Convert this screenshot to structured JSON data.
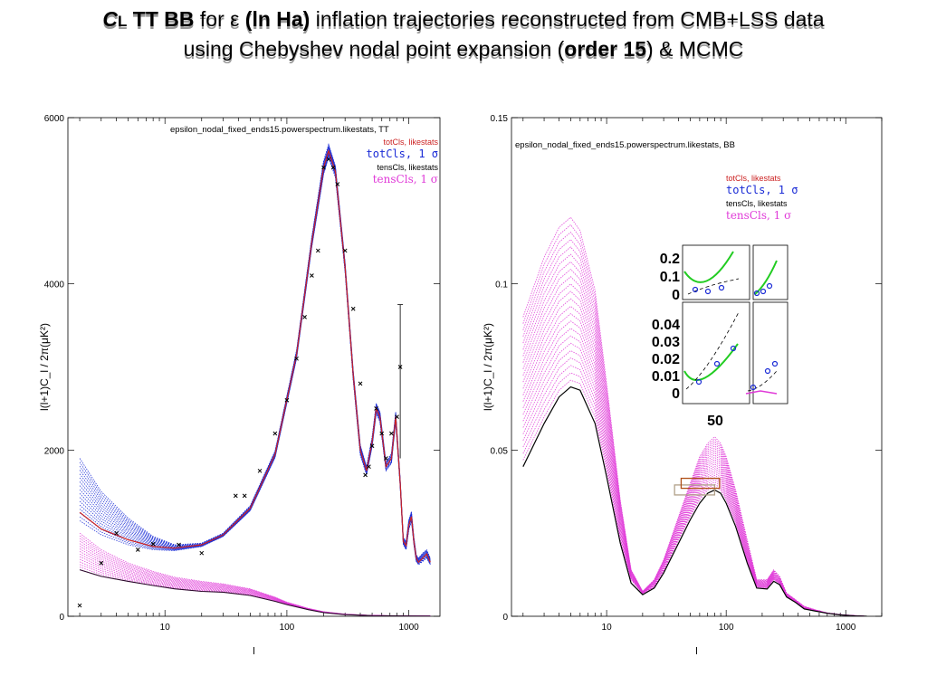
{
  "title": {
    "line1": {
      "cl_letter": "C",
      "cl_sub": "L",
      "tt_bb": " TT BB",
      "for": " for ",
      "epsilon": "ε",
      "lnha": " (ln Ha)",
      "rest": " inflation trajectories reconstructed from CMB+LSS data"
    },
    "line2": {
      "pre": "using Chebyshev nodal point expansion (",
      "order": "order 15",
      "post": ") & MCMC"
    }
  },
  "colors": {
    "totcls_likestats": "#cc2222",
    "totcls_1sigma": "#1a2bd6",
    "tenscls_likestats": "#000000",
    "tenscls_1sigma": "#e03ad8",
    "inset_green": "#22cc22"
  },
  "chart_data": [
    {
      "type": "line",
      "title": "epsilon_nodal_fixed_ends15.powerspectrum.likestats, TT",
      "xlabel": "l",
      "ylabel": "l(l+1)C_l / 2π(μK²)",
      "xscale": "log",
      "xlim": [
        1.6,
        1800
      ],
      "ylim": [
        0,
        6000
      ],
      "xticks": [
        "10",
        "100",
        "1000"
      ],
      "yticks": [
        "0",
        "2000",
        "4000",
        "6000"
      ],
      "legend_position": "top-right",
      "legend": [
        {
          "label": "totCls, likestats",
          "color": "#cc2222"
        },
        {
          "label": "totCls, 1 σ",
          "color": "#1a2bd6"
        },
        {
          "label": "tensCls, likestats",
          "color": "#000000"
        },
        {
          "label": "tensCls, 1 σ",
          "color": "#e03ad8"
        }
      ],
      "series": [
        {
          "name": "totCls, likestats",
          "color": "#cc2222",
          "x": [
            2,
            3,
            5,
            8,
            12,
            20,
            30,
            50,
            80,
            120,
            160,
            200,
            220,
            250,
            300,
            350,
            400,
            450,
            500,
            540,
            580,
            650,
            720,
            780,
            850,
            900,
            950,
            1000,
            1050,
            1100,
            1150,
            1200,
            1300,
            1400,
            1500
          ],
          "y": [
            1250,
            1050,
            920,
            840,
            820,
            860,
            980,
            1300,
            1950,
            3150,
            4500,
            5400,
            5600,
            5350,
            4200,
            2900,
            2000,
            1750,
            2100,
            2500,
            2400,
            1800,
            1900,
            2400,
            1600,
            900,
            850,
            1100,
            1200,
            900,
            700,
            650,
            700,
            750,
            650
          ]
        },
        {
          "name": "totCls, 1 σ (upper)",
          "color": "#1a2bd6",
          "x": [
            2,
            3,
            5,
            8,
            12,
            20,
            30,
            50,
            80,
            120,
            160,
            200,
            220,
            250,
            300,
            350,
            400,
            450,
            500,
            540,
            580,
            650,
            720,
            780,
            850,
            900,
            950,
            1000,
            1050,
            1100,
            1150,
            1200,
            1300,
            1400,
            1500
          ],
          "y": [
            1900,
            1500,
            1180,
            960,
            860,
            880,
            1000,
            1330,
            1990,
            3200,
            4560,
            5480,
            5680,
            5420,
            4260,
            2960,
            2060,
            1800,
            2160,
            2560,
            2460,
            1850,
            1960,
            2460,
            1650,
            950,
            900,
            1160,
            1260,
            950,
            740,
            700,
            760,
            800,
            700
          ]
        },
        {
          "name": "totCls, 1 σ (lower)",
          "color": "#1a2bd6",
          "x": [
            2,
            3,
            5,
            8,
            12,
            20,
            30,
            50,
            80,
            120,
            160,
            200,
            220,
            250,
            300,
            350,
            400,
            450,
            500,
            540,
            580,
            650,
            720,
            780,
            850,
            900,
            950,
            1000,
            1050,
            1100,
            1150,
            1200,
            1300,
            1400,
            1500
          ],
          "y": [
            1150,
            980,
            860,
            800,
            790,
            840,
            960,
            1270,
            1910,
            3100,
            4440,
            5320,
            5520,
            5280,
            4140,
            2840,
            1940,
            1700,
            2040,
            2440,
            2340,
            1750,
            1840,
            2340,
            1550,
            860,
            800,
            1040,
            1140,
            860,
            660,
            620,
            660,
            700,
            620
          ]
        },
        {
          "name": "tensCls, likestats",
          "color": "#000000",
          "x": [
            2,
            3,
            5,
            8,
            12,
            20,
            30,
            50,
            80,
            100,
            150,
            200,
            300,
            500,
            800,
            1000,
            1500
          ],
          "y": [
            560,
            480,
            420,
            370,
            330,
            300,
            290,
            250,
            180,
            140,
            80,
            45,
            20,
            8,
            4,
            3,
            2
          ]
        },
        {
          "name": "tensCls, 1 σ (upper)",
          "color": "#e03ad8",
          "x": [
            2,
            3,
            5,
            8,
            12,
            20,
            30,
            50,
            80,
            100,
            150,
            200,
            300,
            500,
            800,
            1000,
            1500
          ],
          "y": [
            1000,
            800,
            640,
            540,
            470,
            420,
            390,
            330,
            230,
            170,
            95,
            55,
            25,
            10,
            5,
            4,
            3
          ]
        }
      ],
      "data_points": [
        {
          "x": 2,
          "y": 130
        },
        {
          "x": 3,
          "y": 640
        },
        {
          "x": 4,
          "y": 1000
        },
        {
          "x": 6,
          "y": 800
        },
        {
          "x": 8,
          "y": 870
        },
        {
          "x": 13,
          "y": 860
        },
        {
          "x": 20,
          "y": 760
        },
        {
          "x": 38,
          "y": 1450
        },
        {
          "x": 45,
          "y": 1450
        },
        {
          "x": 60,
          "y": 1750
        },
        {
          "x": 80,
          "y": 2200
        },
        {
          "x": 100,
          "y": 2600
        },
        {
          "x": 120,
          "y": 3100
        },
        {
          "x": 140,
          "y": 3600
        },
        {
          "x": 160,
          "y": 4100
        },
        {
          "x": 180,
          "y": 4400
        },
        {
          "x": 200,
          "y": 5400
        },
        {
          "x": 220,
          "y": 5500
        },
        {
          "x": 240,
          "y": 5400
        },
        {
          "x": 260,
          "y": 5200
        },
        {
          "x": 300,
          "y": 4400
        },
        {
          "x": 350,
          "y": 3700
        },
        {
          "x": 400,
          "y": 2800
        },
        {
          "x": 440,
          "y": 1700
        },
        {
          "x": 470,
          "y": 1800
        },
        {
          "x": 500,
          "y": 2050
        },
        {
          "x": 540,
          "y": 2500
        },
        {
          "x": 600,
          "y": 2200
        },
        {
          "x": 650,
          "y": 1900
        },
        {
          "x": 720,
          "y": 2200
        },
        {
          "x": 800,
          "y": 2400
        },
        {
          "x": 850,
          "y": 3000
        }
      ]
    },
    {
      "type": "line",
      "title": "epsilon_nodal_fixed_ends15.powerspectrum.likestats, BB",
      "xlabel": "l",
      "ylabel": "l(l+1)C_l / 2π(μK²)",
      "xscale": "log",
      "xlim": [
        1.6,
        2000
      ],
      "ylim": [
        0,
        0.15
      ],
      "xticks": [
        "10",
        "100",
        "1000"
      ],
      "yticks": [
        "0",
        "0.05",
        "0.1",
        "0.15"
      ],
      "legend_position": "top-right",
      "legend": [
        {
          "label": "totCls, likestats",
          "color": "#cc2222"
        },
        {
          "label": "totCls, 1 σ",
          "color": "#1a2bd6"
        },
        {
          "label": "tensCls, likestats",
          "color": "#000000"
        },
        {
          "label": "tensCls, 1 σ",
          "color": "#e03ad8"
        }
      ],
      "series": [
        {
          "name": "tensCls, likestats",
          "color": "#000000",
          "x": [
            2,
            3,
            4,
            5,
            6,
            8,
            10,
            13,
            16,
            20,
            25,
            30,
            40,
            50,
            60,
            70,
            80,
            90,
            100,
            120,
            150,
            180,
            220,
            250,
            280,
            320,
            380,
            450,
            550,
            700,
            900,
            1200,
            1500
          ],
          "y": [
            0.045,
            0.058,
            0.066,
            0.069,
            0.068,
            0.058,
            0.042,
            0.022,
            0.01,
            0.0065,
            0.0085,
            0.013,
            0.022,
            0.029,
            0.034,
            0.037,
            0.038,
            0.037,
            0.034,
            0.027,
            0.016,
            0.0085,
            0.0082,
            0.0105,
            0.0095,
            0.0058,
            0.0042,
            0.0022,
            0.0016,
            0.0009,
            0.0004,
            0.0001,
            0.0
          ]
        },
        {
          "name": "tensCls, 1 σ (upper)",
          "color": "#e03ad8",
          "x": [
            2,
            3,
            4,
            5,
            6,
            8,
            10,
            13,
            16,
            20,
            25,
            30,
            40,
            50,
            60,
            70,
            80,
            90,
            100,
            120,
            150,
            180,
            220,
            250,
            280,
            320,
            380,
            450,
            550,
            700,
            900,
            1200,
            1500
          ],
          "y": [
            0.09,
            0.108,
            0.117,
            0.12,
            0.116,
            0.098,
            0.07,
            0.035,
            0.014,
            0.0075,
            0.011,
            0.017,
            0.03,
            0.04,
            0.048,
            0.052,
            0.054,
            0.052,
            0.048,
            0.038,
            0.023,
            0.011,
            0.011,
            0.014,
            0.012,
            0.007,
            0.005,
            0.003,
            0.002,
            0.001,
            0.0005,
            0.0002,
            0.0
          ]
        },
        {
          "name": "tensCls, 1 σ (lower)",
          "color": "#e03ad8",
          "x": [
            2,
            3,
            4,
            5,
            6,
            8,
            10,
            13,
            16,
            20,
            25,
            30,
            40,
            50,
            60,
            70,
            80,
            90,
            100,
            120,
            150,
            180,
            220,
            250,
            280,
            320,
            380,
            450,
            550,
            700,
            900,
            1200,
            1500
          ],
          "y": [
            0.047,
            0.06,
            0.068,
            0.071,
            0.07,
            0.06,
            0.044,
            0.023,
            0.011,
            0.0068,
            0.0088,
            0.0135,
            0.023,
            0.03,
            0.035,
            0.038,
            0.039,
            0.038,
            0.035,
            0.028,
            0.0165,
            0.0088,
            0.0085,
            0.011,
            0.0098,
            0.006,
            0.0044,
            0.0023,
            0.0017,
            0.0009,
            0.0004,
            0.0001,
            0.0
          ]
        }
      ],
      "boxes": [
        {
          "x0": 37,
          "x1": 80,
          "y0": 0.0365,
          "y1": 0.0395,
          "color": "#b0a088"
        },
        {
          "x0": 42,
          "x1": 88,
          "y0": 0.0385,
          "y1": 0.0415,
          "color": "#b05018"
        }
      ],
      "inset": {
        "top_yticks": [
          "0.2",
          "0.1",
          "0"
        ],
        "bottom_yticks": [
          "0.04",
          "0.03",
          "0.02",
          "0.01",
          "0"
        ],
        "xtick": "50"
      }
    }
  ]
}
